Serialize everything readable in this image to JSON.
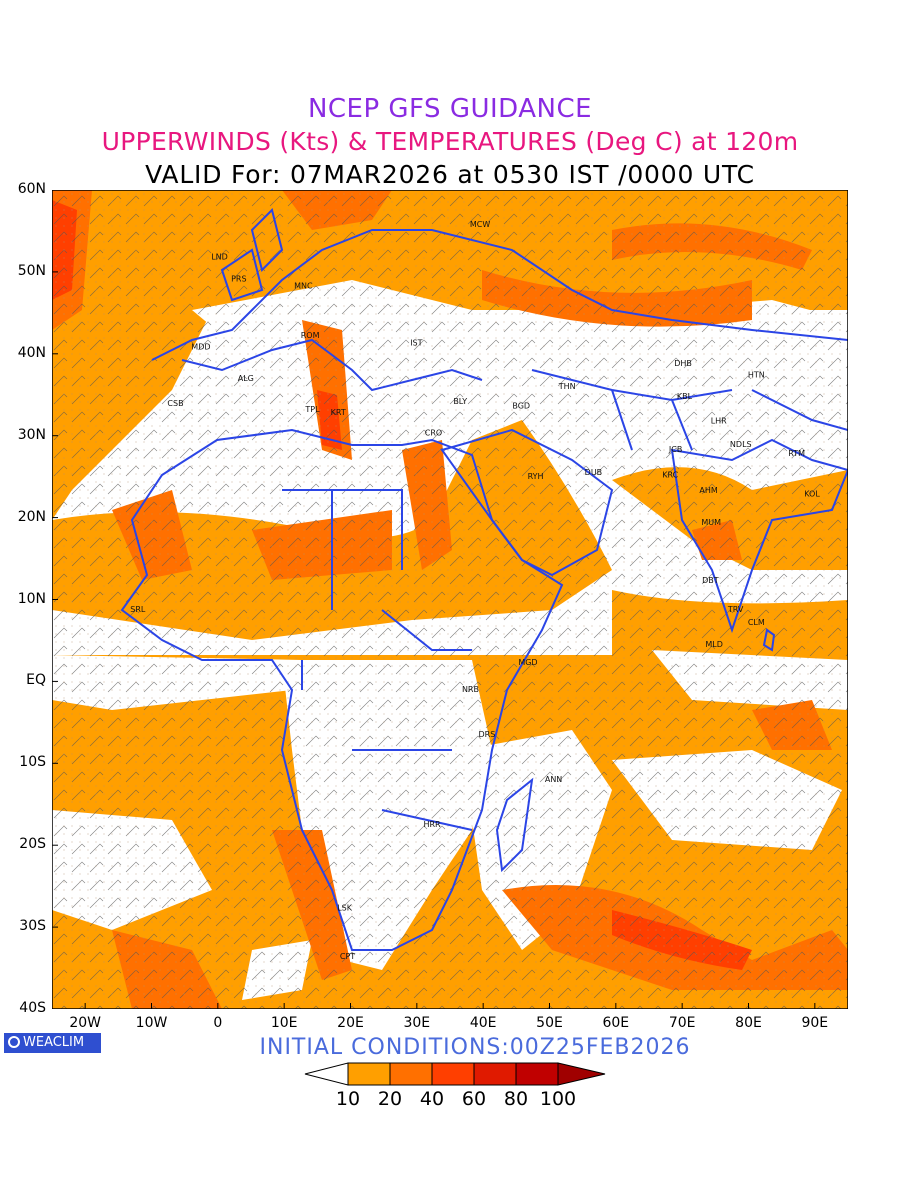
{
  "header": {
    "line1": "NCEP GFS GUIDANCE",
    "line2": "UPPERWINDS (Kts) & TEMPERATURES (Deg C) at 120m",
    "line3": "VALID For: 07MAR2026 at 0530 IST /0000 UTC"
  },
  "axes": {
    "lat_labels": [
      "60N",
      "50N",
      "40N",
      "30N",
      "20N",
      "10N",
      "EQ",
      "10S",
      "20S",
      "30S",
      "40S"
    ],
    "lon_labels": [
      "20W",
      "10W",
      "0",
      "10E",
      "20E",
      "30E",
      "40E",
      "50E",
      "60E",
      "70E",
      "80E",
      "90E"
    ],
    "lat_range": [
      -40,
      60
    ],
    "lon_range": [
      -25,
      95
    ]
  },
  "logo": "WEACLIM",
  "initial_conditions": "INITIAL CONDITIONS:00Z25FEB2026",
  "colorbar": {
    "labels": [
      "10",
      "20",
      "40",
      "60",
      "80",
      "100"
    ],
    "colors": [
      "#ffffff",
      "#ff9f00",
      "#ff7000",
      "#ff3f00",
      "#e01a00",
      "#c00000",
      "#a00000"
    ]
  },
  "stations": [
    {
      "code": "MCW",
      "lon": 38,
      "lat": 55.5
    },
    {
      "code": "LND",
      "lon": -1,
      "lat": 51.5
    },
    {
      "code": "PRS",
      "lon": 2,
      "lat": 48.8
    },
    {
      "code": "MNC",
      "lon": 11.5,
      "lat": 48
    },
    {
      "code": "MDD",
      "lon": -4,
      "lat": 40.5
    },
    {
      "code": "ROM",
      "lon": 12.5,
      "lat": 41.9
    },
    {
      "code": "IST",
      "lon": 29,
      "lat": 41
    },
    {
      "code": "ALG",
      "lon": 3,
      "lat": 36.7
    },
    {
      "code": "CSB",
      "lon": -7.6,
      "lat": 33.6
    },
    {
      "code": "TPL",
      "lon": 13.2,
      "lat": 32.9
    },
    {
      "code": "KRT",
      "lon": 17,
      "lat": 32.5
    },
    {
      "code": "BLY",
      "lon": 35.5,
      "lat": 33.9
    },
    {
      "code": "CRO",
      "lon": 31.2,
      "lat": 30
    },
    {
      "code": "BGD",
      "lon": 44.4,
      "lat": 33.3
    },
    {
      "code": "THN",
      "lon": 51.4,
      "lat": 35.7
    },
    {
      "code": "DHB",
      "lon": 68.8,
      "lat": 38.5
    },
    {
      "code": "HTN",
      "lon": 79.9,
      "lat": 37.1
    },
    {
      "code": "KBL",
      "lon": 69.2,
      "lat": 34.5
    },
    {
      "code": "LHR",
      "lon": 74.3,
      "lat": 31.5
    },
    {
      "code": "JCB",
      "lon": 68,
      "lat": 28
    },
    {
      "code": "NDLS",
      "lon": 77.2,
      "lat": 28.6
    },
    {
      "code": "RTM",
      "lon": 86,
      "lat": 27.5
    },
    {
      "code": "RYH",
      "lon": 46.7,
      "lat": 24.7
    },
    {
      "code": "DUB",
      "lon": 55.3,
      "lat": 25.2
    },
    {
      "code": "KRC",
      "lon": 67,
      "lat": 24.9
    },
    {
      "code": "AHM",
      "lon": 72.6,
      "lat": 23
    },
    {
      "code": "KOL",
      "lon": 88.4,
      "lat": 22.6
    },
    {
      "code": "MUM",
      "lon": 72.9,
      "lat": 19.1
    },
    {
      "code": "DBT",
      "lon": 73,
      "lat": 12
    },
    {
      "code": "TRV",
      "lon": 76.9,
      "lat": 8.5
    },
    {
      "code": "CLM",
      "lon": 79.9,
      "lat": 6.9
    },
    {
      "code": "MLD",
      "lon": 73.5,
      "lat": 4.2
    },
    {
      "code": "MGD",
      "lon": 45.3,
      "lat": 2
    },
    {
      "code": "NRB",
      "lon": 36.8,
      "lat": -1.3
    },
    {
      "code": "DRS",
      "lon": 39.3,
      "lat": -6.8
    },
    {
      "code": "ANN",
      "lon": 49.3,
      "lat": -12.3
    },
    {
      "code": "HRR",
      "lon": 31,
      "lat": -17.8
    },
    {
      "code": "LSK",
      "lon": 18,
      "lat": -28
    },
    {
      "code": "CPT",
      "lon": 18.4,
      "lat": -33.9
    },
    {
      "code": "SRL",
      "lon": -13.2,
      "lat": 8.5
    }
  ]
}
